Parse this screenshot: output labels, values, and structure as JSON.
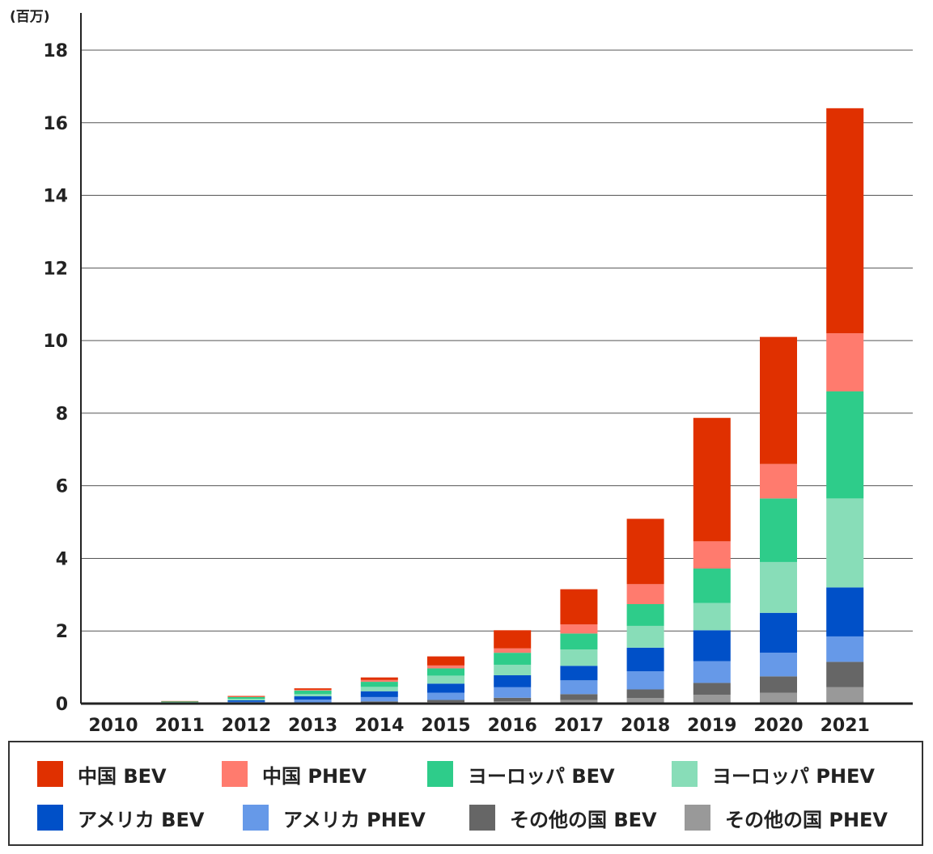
{
  "chart_data": {
    "type": "bar",
    "stacked": true,
    "unit_label": "(百万)",
    "categories": [
      "2010",
      "2011",
      "2012",
      "2013",
      "2014",
      "2015",
      "2016",
      "2017",
      "2018",
      "2019",
      "2020",
      "2021"
    ],
    "ylim": [
      0,
      18
    ],
    "yticks": [
      "0",
      "2",
      "4",
      "6",
      "8",
      "10",
      "12",
      "14",
      "16",
      "18"
    ],
    "grid": true,
    "legend_position": "bottom",
    "series": [
      {
        "name": "その他の国 PHEV",
        "color": "#999999",
        "values": [
          0,
          0,
          0,
          0.01,
          0.02,
          0.04,
          0.06,
          0.1,
          0.15,
          0.24,
          0.3,
          0.45
        ]
      },
      {
        "name": "その他の国 BEV",
        "color": "#666666",
        "values": [
          0,
          0,
          0.01,
          0.02,
          0.04,
          0.06,
          0.1,
          0.16,
          0.24,
          0.33,
          0.45,
          0.7
        ]
      },
      {
        "name": "アメリカ PHEV",
        "color": "#6699E8",
        "values": [
          0,
          0.01,
          0.04,
          0.08,
          0.12,
          0.2,
          0.29,
          0.38,
          0.5,
          0.6,
          0.65,
          0.7
        ]
      },
      {
        "name": "アメリカ BEV",
        "color": "#0050C8",
        "values": [
          0,
          0.01,
          0.04,
          0.09,
          0.16,
          0.25,
          0.33,
          0.4,
          0.65,
          0.85,
          1.1,
          1.35
        ]
      },
      {
        "name": "ヨーロッパ PHEV",
        "color": "#88DDB8",
        "values": [
          0,
          0.02,
          0.04,
          0.06,
          0.12,
          0.22,
          0.29,
          0.45,
          0.6,
          0.75,
          1.4,
          2.45
        ]
      },
      {
        "name": "ヨーロッパ BEV",
        "color": "#2ECC8A",
        "values": [
          0,
          0.02,
          0.05,
          0.1,
          0.14,
          0.2,
          0.33,
          0.44,
          0.6,
          0.95,
          1.75,
          2.95
        ]
      },
      {
        "name": "中国 PHEV",
        "color": "#FF7B6E",
        "values": [
          0,
          0,
          0.01,
          0.02,
          0.05,
          0.08,
          0.12,
          0.25,
          0.55,
          0.75,
          0.95,
          1.6
        ]
      },
      {
        "name": "中国 BEV",
        "color": "#E03000",
        "values": [
          0,
          0.01,
          0.02,
          0.04,
          0.07,
          0.25,
          0.5,
          0.97,
          1.8,
          3.4,
          3.5,
          6.2
        ]
      }
    ]
  },
  "legend": {
    "items": [
      {
        "label": "中国 BEV",
        "color": "#E03000"
      },
      {
        "label": "中国 PHEV",
        "color": "#FF7B6E"
      },
      {
        "label": "ヨーロッパ BEV",
        "color": "#2ECC8A"
      },
      {
        "label": "ヨーロッパ PHEV",
        "color": "#88DDB8"
      },
      {
        "label": "アメリカ BEV",
        "color": "#0050C8"
      },
      {
        "label": "アメリカ PHEV",
        "color": "#6699E8"
      },
      {
        "label": "その他の国 BEV",
        "color": "#666666"
      },
      {
        "label": "その他の国 PHEV",
        "color": "#999999"
      }
    ]
  }
}
